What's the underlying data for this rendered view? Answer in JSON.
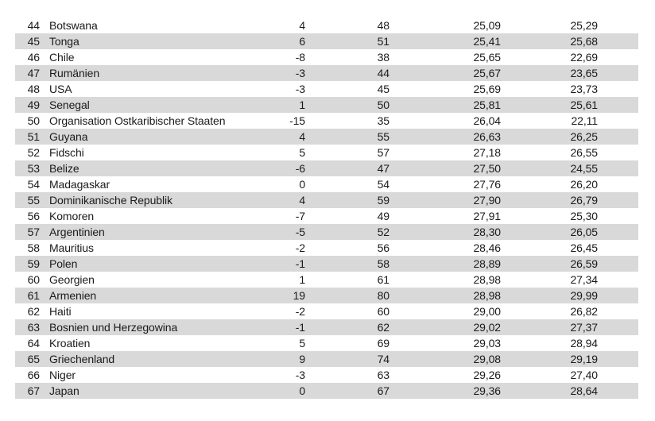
{
  "colors": {
    "background": "#ffffff",
    "stripe": "#d9d9d9",
    "text": "#1b1b1b"
  },
  "table": {
    "rows": [
      {
        "rank": "44",
        "country": "Botswana",
        "change": "4",
        "prev_rank": "48",
        "score": "25,09",
        "prev_score": "25,29"
      },
      {
        "rank": "45",
        "country": "Tonga",
        "change": "6",
        "prev_rank": "51",
        "score": "25,41",
        "prev_score": "25,68"
      },
      {
        "rank": "46",
        "country": "Chile",
        "change": "-8",
        "prev_rank": "38",
        "score": "25,65",
        "prev_score": "22,69"
      },
      {
        "rank": "47",
        "country": "Rumänien",
        "change": "-3",
        "prev_rank": "44",
        "score": "25,67",
        "prev_score": "23,65"
      },
      {
        "rank": "48",
        "country": "USA",
        "change": "-3",
        "prev_rank": "45",
        "score": "25,69",
        "prev_score": "23,73"
      },
      {
        "rank": "49",
        "country": "Senegal",
        "change": "1",
        "prev_rank": "50",
        "score": "25,81",
        "prev_score": "25,61"
      },
      {
        "rank": "50",
        "country": "Organisation Ostkaribischer Staaten",
        "change": "-15",
        "prev_rank": "35",
        "score": "26,04",
        "prev_score": "22,11"
      },
      {
        "rank": "51",
        "country": "Guyana",
        "change": "4",
        "prev_rank": "55",
        "score": "26,63",
        "prev_score": "26,25"
      },
      {
        "rank": "52",
        "country": "Fidschi",
        "change": "5",
        "prev_rank": "57",
        "score": "27,18",
        "prev_score": "26,55"
      },
      {
        "rank": "53",
        "country": "Belize",
        "change": "-6",
        "prev_rank": "47",
        "score": "27,50",
        "prev_score": "24,55"
      },
      {
        "rank": "54",
        "country": "Madagaskar",
        "change": "0",
        "prev_rank": "54",
        "score": "27,76",
        "prev_score": "26,20"
      },
      {
        "rank": "55",
        "country": "Dominikanische Republik",
        "change": "4",
        "prev_rank": "59",
        "score": "27,90",
        "prev_score": "26,79"
      },
      {
        "rank": "56",
        "country": "Komoren",
        "change": "-7",
        "prev_rank": "49",
        "score": "27,91",
        "prev_score": "25,30"
      },
      {
        "rank": "57",
        "country": "Argentinien",
        "change": "-5",
        "prev_rank": "52",
        "score": "28,30",
        "prev_score": "26,05"
      },
      {
        "rank": "58",
        "country": "Mauritius",
        "change": "-2",
        "prev_rank": "56",
        "score": "28,46",
        "prev_score": "26,45"
      },
      {
        "rank": "59",
        "country": "Polen",
        "change": "-1",
        "prev_rank": "58",
        "score": "28,89",
        "prev_score": "26,59"
      },
      {
        "rank": "60",
        "country": "Georgien",
        "change": "1",
        "prev_rank": "61",
        "score": "28,98",
        "prev_score": "27,34"
      },
      {
        "rank": "61",
        "country": "Armenien",
        "change": "19",
        "prev_rank": "80",
        "score": "28,98",
        "prev_score": "29,99"
      },
      {
        "rank": "62",
        "country": "Haiti",
        "change": "-2",
        "prev_rank": "60",
        "score": "29,00",
        "prev_score": "26,82"
      },
      {
        "rank": "63",
        "country": "Bosnien und Herzegowina",
        "change": "-1",
        "prev_rank": "62",
        "score": "29,02",
        "prev_score": "27,37"
      },
      {
        "rank": "64",
        "country": "Kroatien",
        "change": "5",
        "prev_rank": "69",
        "score": "29,03",
        "prev_score": "28,94"
      },
      {
        "rank": "65",
        "country": "Griechenland",
        "change": "9",
        "prev_rank": "74",
        "score": "29,08",
        "prev_score": "29,19"
      },
      {
        "rank": "66",
        "country": "Niger",
        "change": "-3",
        "prev_rank": "63",
        "score": "29,26",
        "prev_score": "27,40"
      },
      {
        "rank": "67",
        "country": "Japan",
        "change": "0",
        "prev_rank": "67",
        "score": "29,36",
        "prev_score": "28,64"
      }
    ]
  }
}
